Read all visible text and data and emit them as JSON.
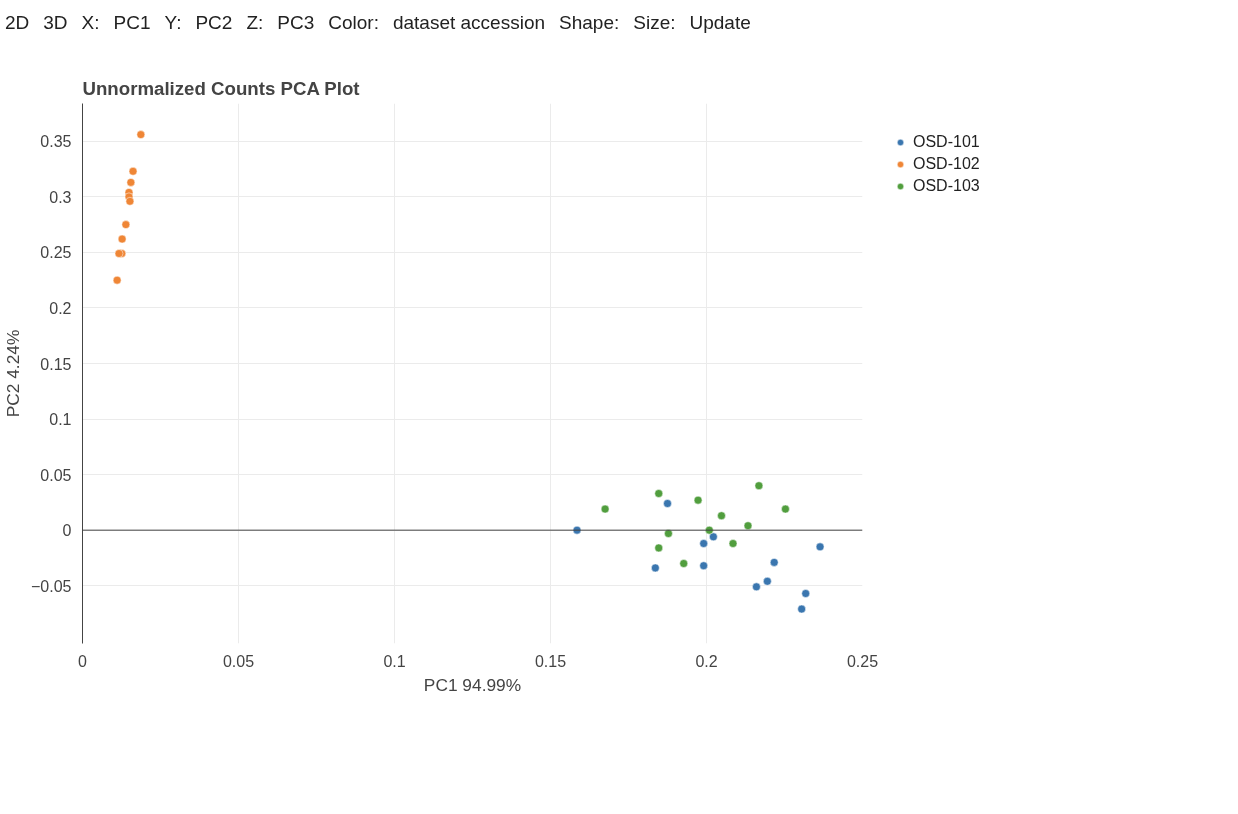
{
  "chart_data": {
    "type": "scatter",
    "title": "Unnormalized Counts PCA Plot",
    "xlabel": "PC1 94.99%",
    "ylabel": "PC2 4.24%",
    "annotations": [
      "2D",
      "3D",
      "X:",
      "PC1",
      "Y:",
      "PC2",
      "Z:",
      "PC3",
      "Color:",
      "dataset accession",
      "Shape:",
      "Size:",
      "Update"
    ],
    "xlim": [
      0,
      0.25
    ],
    "ylim": [
      -0.102,
      0.384
    ],
    "xticks": [
      0,
      0.05,
      0.1,
      0.15,
      0.2,
      0.25
    ],
    "yticks": [
      {
        "value": -0.05,
        "label": "−0.05"
      },
      0,
      0.05,
      0.1,
      0.15,
      0.2,
      0.25,
      0.3,
      0.35
    ],
    "grid": true,
    "legend": "top right",
    "marker": "circle",
    "ref_lines": [
      {
        "axis": "y",
        "value": 0,
        "color": "#444444"
      }
    ],
    "series": [
      {
        "name": "OSD-101",
        "color": "#3a76af",
        "x": [
          0.1585,
          0.1875,
          0.1991,
          0.2022,
          0.1836,
          0.1991,
          0.2364,
          0.2217,
          0.2195,
          0.216,
          0.2318,
          0.2305
        ],
        "values": [
          0.0,
          0.024,
          -0.012,
          -0.006,
          -0.034,
          -0.032,
          -0.015,
          -0.029,
          -0.046,
          -0.051,
          -0.057,
          -0.071
        ]
      },
      {
        "name": "OSD-102",
        "color": "#ef8636",
        "x": [
          0.0187,
          0.0162,
          0.0155,
          0.0149,
          0.0149,
          0.0152,
          0.0139,
          0.0127,
          0.0126,
          0.0117,
          0.0111
        ],
        "values": [
          0.356,
          0.323,
          0.313,
          0.304,
          0.3,
          0.296,
          0.275,
          0.262,
          0.249,
          0.249,
          0.225
        ]
      },
      {
        "name": "OSD-103",
        "color": "#519e3e",
        "x": [
          0.1675,
          0.1847,
          0.1973,
          0.2168,
          0.2253,
          0.2048,
          0.2133,
          0.1878,
          0.2009,
          0.1847,
          0.2085,
          0.1927
        ],
        "values": [
          0.019,
          0.033,
          0.027,
          0.04,
          0.019,
          0.013,
          0.004,
          -0.003,
          0.0,
          -0.016,
          -0.012,
          -0.03
        ]
      }
    ]
  }
}
